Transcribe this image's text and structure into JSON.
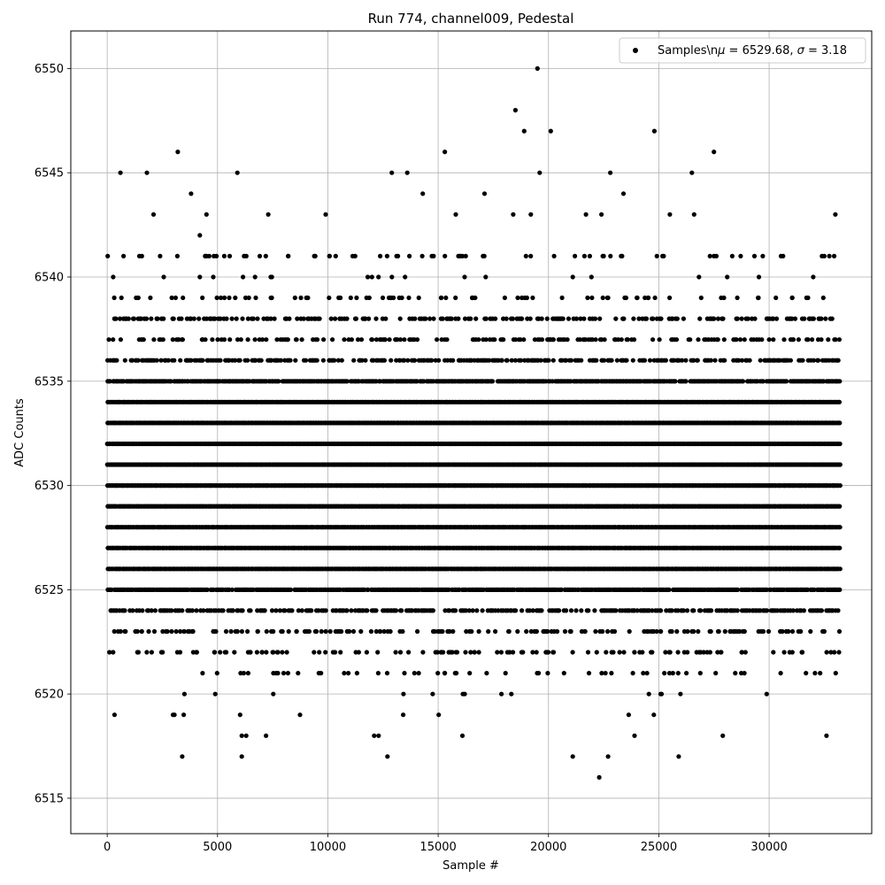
{
  "chart_data": {
    "type": "scatter",
    "title": "Run 774, channel009, Pedestal",
    "xlabel": "Sample #",
    "ylabel": "ADC Counts",
    "xlim": [
      -1650,
      34650
    ],
    "ylim": [
      6513.3,
      6551.8
    ],
    "xticks": [
      0,
      5000,
      10000,
      15000,
      20000,
      25000,
      30000
    ],
    "yticks": [
      6515,
      6520,
      6525,
      6530,
      6535,
      6540,
      6545,
      6550
    ],
    "grid": true,
    "legend_position": "top-right",
    "series": [
      {
        "name": "Samples\\n$\\mu$ = 6529.68, $\\sigma$ = 3.18",
        "legend_parts": [
          "Samples\\n",
          "μ",
          " = 6529.68, ",
          "σ",
          " = 3.18"
        ],
        "color": "#000000",
        "marker": "circle",
        "n_samples": 33200,
        "mean": 6529.68,
        "sigma": 3.18,
        "dense_levels": [
          {
            "y": 6524,
            "density": 0.5
          },
          {
            "y": 6525,
            "density": 0.9
          },
          {
            "y": 6526,
            "density": 1.0
          },
          {
            "y": 6527,
            "density": 1.0
          },
          {
            "y": 6528,
            "density": 1.0
          },
          {
            "y": 6529,
            "density": 1.0
          },
          {
            "y": 6530,
            "density": 1.0
          },
          {
            "y": 6531,
            "density": 1.0
          },
          {
            "y": 6532,
            "density": 1.0
          },
          {
            "y": 6533,
            "density": 1.0
          },
          {
            "y": 6534,
            "density": 1.0
          },
          {
            "y": 6535,
            "density": 0.9
          },
          {
            "y": 6536,
            "density": 0.55
          },
          {
            "y": 6537,
            "density": 0.3
          },
          {
            "y": 6538,
            "density": 0.35
          }
        ],
        "sparse_levels": [
          {
            "y": 6523,
            "count": 170
          },
          {
            "y": 6522,
            "count": 120
          },
          {
            "y": 6521,
            "count": 55
          },
          {
            "y": 6539,
            "count": 80
          },
          {
            "y": 6541,
            "count": 70
          },
          {
            "y": 6540,
            "count": 14
          },
          {
            "y": 6520,
            "count": 14
          },
          {
            "y": 6519,
            "count": 10
          }
        ],
        "outliers": [
          [
            600,
            6545
          ],
          [
            1800,
            6545
          ],
          [
            3200,
            6546
          ],
          [
            3800,
            6544
          ],
          [
            4200,
            6542
          ],
          [
            5900,
            6545
          ],
          [
            12900,
            6545
          ],
          [
            13600,
            6545
          ],
          [
            14300,
            6544
          ],
          [
            15300,
            6546
          ],
          [
            17100,
            6544
          ],
          [
            18500,
            6548
          ],
          [
            18900,
            6547
          ],
          [
            19500,
            6550
          ],
          [
            19600,
            6545
          ],
          [
            20100,
            6547
          ],
          [
            22800,
            6545
          ],
          [
            23400,
            6544
          ],
          [
            24800,
            6547
          ],
          [
            26500,
            6545
          ],
          [
            27500,
            6546
          ],
          [
            2100,
            6543
          ],
          [
            4500,
            6543
          ],
          [
            7300,
            6543
          ],
          [
            9900,
            6543
          ],
          [
            15800,
            6543
          ],
          [
            18400,
            6543
          ],
          [
            19200,
            6543
          ],
          [
            21700,
            6543
          ],
          [
            22400,
            6543
          ],
          [
            25500,
            6543
          ],
          [
            26600,
            6543
          ],
          [
            33000,
            6543
          ],
          [
            4200,
            6540
          ],
          [
            6700,
            6540
          ],
          [
            12000,
            6540
          ],
          [
            13500,
            6540
          ],
          [
            21100,
            6540
          ],
          [
            28100,
            6540
          ],
          [
            32000,
            6540
          ],
          [
            3400,
            6517
          ],
          [
            6100,
            6517
          ],
          [
            12700,
            6517
          ],
          [
            21100,
            6517
          ],
          [
            22700,
            6517
          ],
          [
            25900,
            6517
          ],
          [
            22300,
            6516
          ],
          [
            6100,
            6518
          ],
          [
            6300,
            6518
          ],
          [
            7200,
            6518
          ],
          [
            12100,
            6518
          ],
          [
            12300,
            6518
          ],
          [
            16100,
            6518
          ],
          [
            23900,
            6518
          ],
          [
            27900,
            6518
          ],
          [
            32600,
            6518
          ]
        ]
      }
    ]
  }
}
